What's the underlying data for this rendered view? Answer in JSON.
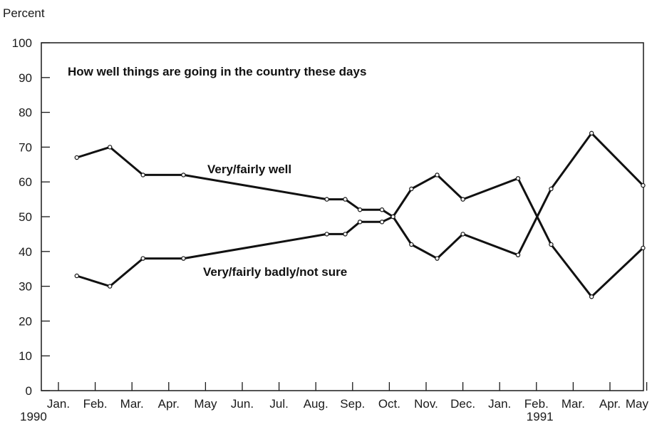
{
  "chart_data": {
    "type": "line",
    "title": "How well things are going in the country these days",
    "ylabel": "Percent",
    "xlabel": "",
    "ylim": [
      0,
      100
    ],
    "yticks": [
      0,
      10,
      20,
      30,
      40,
      50,
      60,
      70,
      80,
      90,
      100
    ],
    "xtick_labels": [
      "Jan.",
      "Feb.",
      "Mar.",
      "Apr.",
      "May",
      "Jun.",
      "Jul.",
      "Aug.",
      "Sep.",
      "Oct.",
      "Nov.",
      "Dec.",
      "Jan.",
      "Feb.",
      "Mar.",
      "Apr.",
      "May"
    ],
    "xtick_year_labels": [
      {
        "tick": 0,
        "label": "1990"
      },
      {
        "tick": 13,
        "label": "1991"
      }
    ],
    "xlim_months": [
      0,
      16
    ],
    "grid": false,
    "line_color": "#111111",
    "series": [
      {
        "name": "Very/fairly well",
        "points": [
          {
            "x": 0.5,
            "y": 67
          },
          {
            "x": 1.4,
            "y": 70
          },
          {
            "x": 2.3,
            "y": 62
          },
          {
            "x": 3.4,
            "y": 62
          },
          {
            "x": 7.3,
            "y": 55
          },
          {
            "x": 7.8,
            "y": 55
          },
          {
            "x": 8.2,
            "y": 52
          },
          {
            "x": 8.8,
            "y": 52
          },
          {
            "x": 9.1,
            "y": 50
          },
          {
            "x": 9.6,
            "y": 58
          },
          {
            "x": 10.3,
            "y": 62
          },
          {
            "x": 11.0,
            "y": 55
          },
          {
            "x": 12.5,
            "y": 61
          },
          {
            "x": 13.4,
            "y": 42
          },
          {
            "x": 14.5,
            "y": 27
          },
          {
            "x": 15.9,
            "y": 41
          }
        ]
      },
      {
        "name": "Very/fairly badly/not sure",
        "points": [
          {
            "x": 0.5,
            "y": 33
          },
          {
            "x": 1.4,
            "y": 30
          },
          {
            "x": 2.3,
            "y": 38
          },
          {
            "x": 3.4,
            "y": 38
          },
          {
            "x": 7.3,
            "y": 45
          },
          {
            "x": 7.8,
            "y": 45
          },
          {
            "x": 8.2,
            "y": 48.5
          },
          {
            "x": 8.8,
            "y": 48.5
          },
          {
            "x": 9.1,
            "y": 50
          },
          {
            "x": 9.6,
            "y": 42
          },
          {
            "x": 10.3,
            "y": 38
          },
          {
            "x": 11.0,
            "y": 45
          },
          {
            "x": 12.5,
            "y": 39
          },
          {
            "x": 13.4,
            "y": 58
          },
          {
            "x": 14.5,
            "y": 74
          },
          {
            "x": 15.9,
            "y": 59
          }
        ]
      }
    ],
    "series_labels": [
      {
        "text": "Very/fairly well",
        "x": 6.0,
        "y": 63
      },
      {
        "text": "Very/fairly badly/not sure",
        "x": 6.0,
        "y": 35
      }
    ]
  }
}
